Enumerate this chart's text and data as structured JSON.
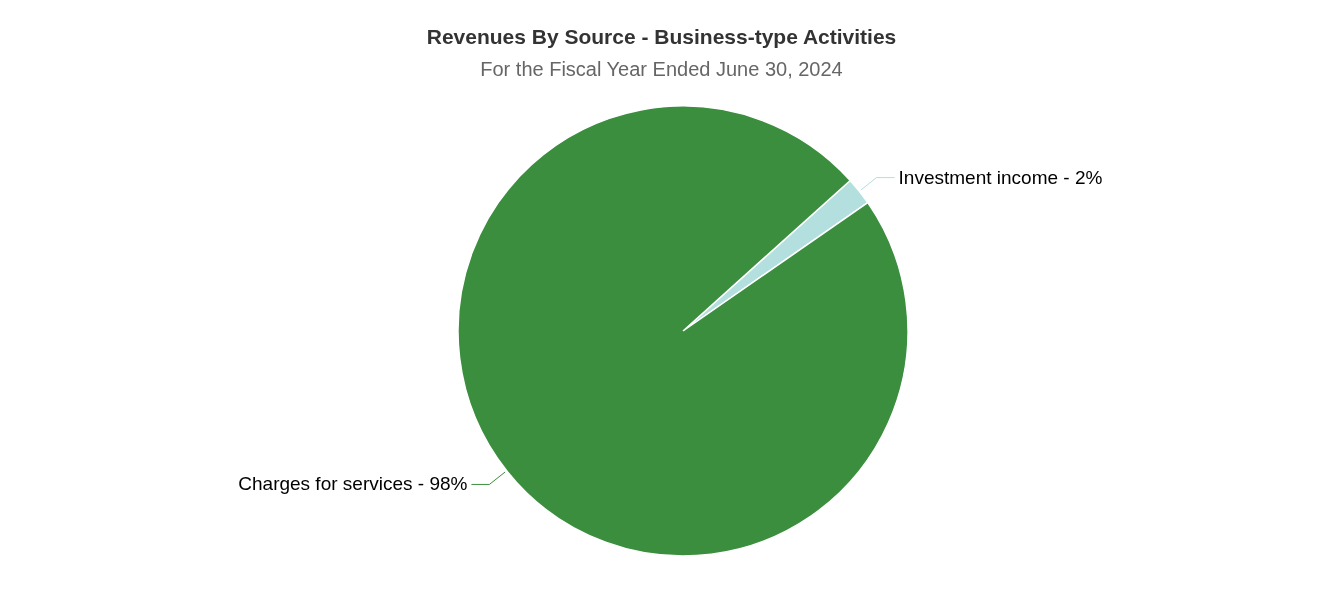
{
  "chart_data": {
    "type": "pie",
    "title": "Revenues By Source - Business-type Activities",
    "subtitle": "For the Fiscal Year Ended June 30, 2024",
    "categories": [
      "Investment income",
      "Charges for services"
    ],
    "values": [
      2,
      98
    ],
    "colors": [
      "#b3e0df",
      "#3a8e3e"
    ],
    "value_labels": [
      "2%",
      "98%"
    ]
  }
}
